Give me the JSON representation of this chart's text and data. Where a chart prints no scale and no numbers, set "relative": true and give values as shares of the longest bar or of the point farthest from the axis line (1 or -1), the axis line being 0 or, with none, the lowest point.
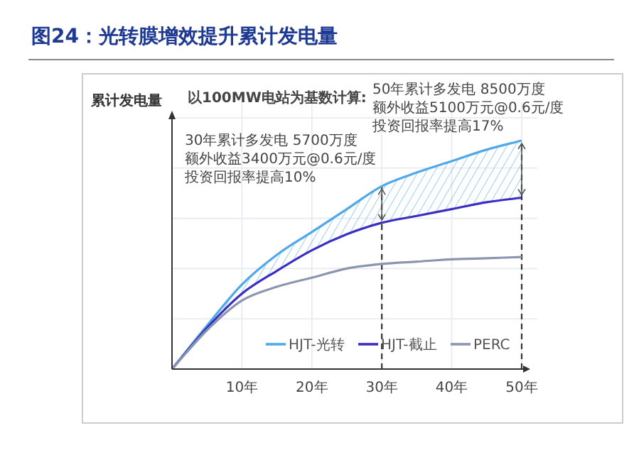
{
  "chart_data": {
    "type": "line",
    "title": "图24：光转膜增效提升累计发电量",
    "ylabel": "累计发电量",
    "relative": true,
    "annotations": [
      "以100MW电站为基数计算:",
      "30年累计多发电 5700万度",
      "额外收益3400万元@0.6元/度",
      "投资回报率提高10%",
      "50年累计多发电 8500万度",
      "额外收益5100万元@0.6元/度",
      "投资回报率提高17%"
    ],
    "x": [
      0,
      5,
      10,
      15,
      20,
      25,
      30,
      35,
      40,
      45,
      50
    ],
    "series": [
      {
        "name": "HJT-光转",
        "color": "#4fa8e8",
        "values": [
          0,
          0.19,
          0.37,
          0.5,
          0.6,
          0.7,
          0.8,
          0.86,
          0.91,
          0.96,
          1.0
        ],
        "lower": [
          0,
          0.18,
          0.33,
          0.43,
          0.52,
          0.59,
          0.64,
          0.67,
          0.7,
          0.73,
          0.75
        ],
        "upper": [
          0,
          0.19,
          0.37,
          0.5,
          0.6,
          0.7,
          0.8,
          0.86,
          0.91,
          0.96,
          1.0
        ]
      },
      {
        "name": "HJT-截止",
        "color": "#3a2fc0",
        "values": [
          0,
          0.18,
          0.33,
          0.43,
          0.52,
          0.59,
          0.64,
          0.67,
          0.7,
          0.73,
          0.75
        ]
      },
      {
        "name": "PERC",
        "color": "#8a96b0",
        "values": [
          0,
          0.17,
          0.3,
          0.36,
          0.4,
          0.44,
          0.46,
          0.47,
          0.48,
          0.485,
          0.49
        ]
      }
    ],
    "xlim": [
      0,
      50
    ],
    "xticks": [
      {
        "value": 10,
        "label": "10年"
      },
      {
        "value": 20,
        "label": "20年"
      },
      {
        "value": 30,
        "label": "30年"
      },
      {
        "value": 40,
        "label": "40年"
      },
      {
        "value": 50,
        "label": "50年"
      }
    ],
    "ref_lines": [
      {
        "axis": "x",
        "value": 30,
        "line_style": "dashed",
        "color": "#333333"
      },
      {
        "axis": "x",
        "value": 50,
        "line_style": "dashed",
        "color": "#333333"
      }
    ],
    "grid": true,
    "legend": "bottom right",
    "line_style": "solid"
  }
}
